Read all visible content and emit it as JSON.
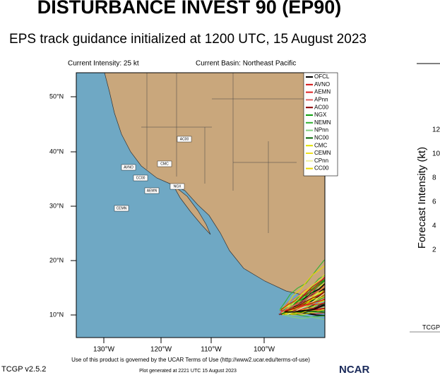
{
  "header": {
    "title": "DISTURBANCE INVEST 90 (EP90)",
    "subtitle": "EPS track guidance initialized at 1200 UTC, 15 August 2023"
  },
  "map": {
    "intensity": "Current Intensity: 25 kt",
    "basin": "Current Basin: Northeast Pacific",
    "lat_labels": [
      "50°N",
      "40°N",
      "30°N",
      "20°N",
      "10°N"
    ],
    "lon_labels": [
      "130°W",
      "120°W",
      "110°W",
      "100°W"
    ],
    "legend": [
      {
        "name": "OFCL",
        "color": "#000000"
      },
      {
        "name": "AVNO",
        "color": "#d01010"
      },
      {
        "name": "AEMN",
        "color": "#e02020"
      },
      {
        "name": "APnn",
        "color": "#e06060"
      },
      {
        "name": "AC00",
        "color": "#8b0000"
      },
      {
        "name": "NGX",
        "color": "#10a010"
      },
      {
        "name": "NEMN",
        "color": "#30b030"
      },
      {
        "name": "NPnn",
        "color": "#80d080"
      },
      {
        "name": "NC00",
        "color": "#006400"
      },
      {
        "name": "CMC",
        "color": "#e0e000"
      },
      {
        "name": "CEMN",
        "color": "#f0e020"
      },
      {
        "name": "CPnn",
        "color": "#f0f0a0"
      },
      {
        "name": "CC00",
        "color": "#e8d800"
      }
    ],
    "track_labels": [
      "AVNO",
      "CMC",
      "AC00",
      "CC00",
      "AEMN",
      "NGX",
      "CEMN"
    ]
  },
  "footer": {
    "terms": "Use of this product is governed by the UCAR Terms of Use (http://www2.ucar.edu/terms-of-use)",
    "plot_time": "Plot generated at 2221 UTC   15 August 2023",
    "version": "TCGP v2.5.2",
    "logo": "NCAR"
  },
  "side_panel": {
    "axis_label": "Forecast Intensity (kt)",
    "ticks": [
      "12",
      "10",
      "8",
      "6",
      "4",
      "2"
    ],
    "footer": "TCGP"
  }
}
